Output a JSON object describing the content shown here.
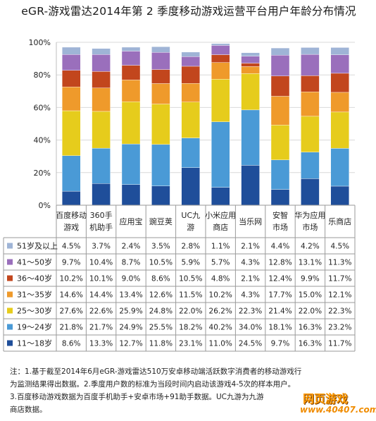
{
  "title": "eGR-游戏雷达2014年第 2 季度移动游戏运营平台用户年龄分布情况",
  "chart_data": {
    "type": "bar",
    "stacked": true,
    "categories": [
      "百度移动游戏",
      "360手机助手",
      "应用宝",
      "豌豆荚",
      "UC九游",
      "小米应用商店",
      "当乐网",
      "安智市场",
      "华为应用市场",
      "乐商店"
    ],
    "y_ticks": [
      "0%",
      "20%",
      "40%",
      "60%",
      "80%",
      "100%"
    ],
    "ylim": [
      0,
      100
    ],
    "grid": true,
    "legend_position": "left, in table rows",
    "series": [
      {
        "name": "11～18岁",
        "color": "#1f4e9a",
        "values": [
          8.6,
          13.3,
          12.7,
          11.8,
          23.1,
          11.0,
          24.5,
          9.7,
          16.3,
          11.7
        ]
      },
      {
        "name": "19～24岁",
        "color": "#4a9ad6",
        "values": [
          21.8,
          21.7,
          24.9,
          25.5,
          18.2,
          40.2,
          34.0,
          18.1,
          16.3,
          23.2
        ]
      },
      {
        "name": "25～30岁",
        "color": "#e6cc1c",
        "values": [
          27.6,
          22.6,
          25.9,
          24.8,
          22.0,
          26.2,
          22.3,
          21.4,
          22.0,
          22.3
        ]
      },
      {
        "name": "31～35岁",
        "color": "#ef9a2b",
        "values": [
          14.6,
          14.4,
          13.4,
          12.6,
          11.5,
          10.2,
          4.3,
          17.7,
          15.0,
          12.1
        ]
      },
      {
        "name": "36～40岁",
        "color": "#c2461d",
        "values": [
          10.2,
          10.1,
          9.0,
          8.6,
          10.5,
          4.8,
          2.1,
          12.4,
          9.9,
          11.7
        ]
      },
      {
        "name": "41～50岁",
        "color": "#9a6fbc",
        "values": [
          9.7,
          10.4,
          8.7,
          10.5,
          5.9,
          5.7,
          4.3,
          12.8,
          13.1,
          11.3
        ]
      },
      {
        "name": "51岁及以上",
        "color": "#9fb4d6",
        "values": [
          4.5,
          3.7,
          2.4,
          3.5,
          2.8,
          1.1,
          2.1,
          4.4,
          4.2,
          4.5
        ]
      }
    ],
    "table_values": [
      [
        "4.5%",
        "3.7%",
        "2.4%",
        "3.5%",
        "2.8%",
        "1.1%",
        "2.1%",
        "4.4%",
        "4.2%",
        "4.5%"
      ],
      [
        "9.7%",
        "10.4%",
        "8.7%",
        "10.5%",
        "5.9%",
        "5.7%",
        "4.3%",
        "12.8%",
        "13.1%",
        "11.3%"
      ],
      [
        "10.2%",
        "10.1%",
        "9.0%",
        "8.6%",
        "10.5%",
        "4.8%",
        "2.1%",
        "12.4%",
        "9.9%",
        "11.7%"
      ],
      [
        "14.6%",
        "14.4%",
        "13.4%",
        "12.6%",
        "11.5%",
        "10.2%",
        "4.3%",
        "17.7%",
        "15.0%",
        "12.1%"
      ],
      [
        "27.6%",
        "22.6%",
        "25.9%",
        "24.8%",
        "22.0%",
        "26.2%",
        "22.3%",
        "21.4%",
        "22.0%",
        "22.3%"
      ],
      [
        "21.8%",
        "21.7%",
        "24.9%",
        "25.5%",
        "18.2%",
        "40.2%",
        "34.0%",
        "18.1%",
        "16.3%",
        "23.2%"
      ],
      [
        "8.6%",
        "13.3%",
        "12.7%",
        "11.8%",
        "23.1%",
        "11.0%",
        "24.5%",
        "9.7%",
        "16.3%",
        "11.7%"
      ]
    ]
  },
  "notes": {
    "line1": "注：1.基于截至2014年6月eGR-游戏雷达510万安卓移动端活跃数字消费者的移动游戏行",
    "line2": "为监测结果得出数据。2.季度用户数的标准为当段时间内启动该游戏4-5次的样本用户。",
    "line3": "3.百度移动游戏数据为百度手机助手+安卓市场+91助手数据。UC九游为九游",
    "line4": "商店数据。"
  },
  "watermark": {
    "name": "网页游戏",
    "url": "www.40407.com"
  }
}
